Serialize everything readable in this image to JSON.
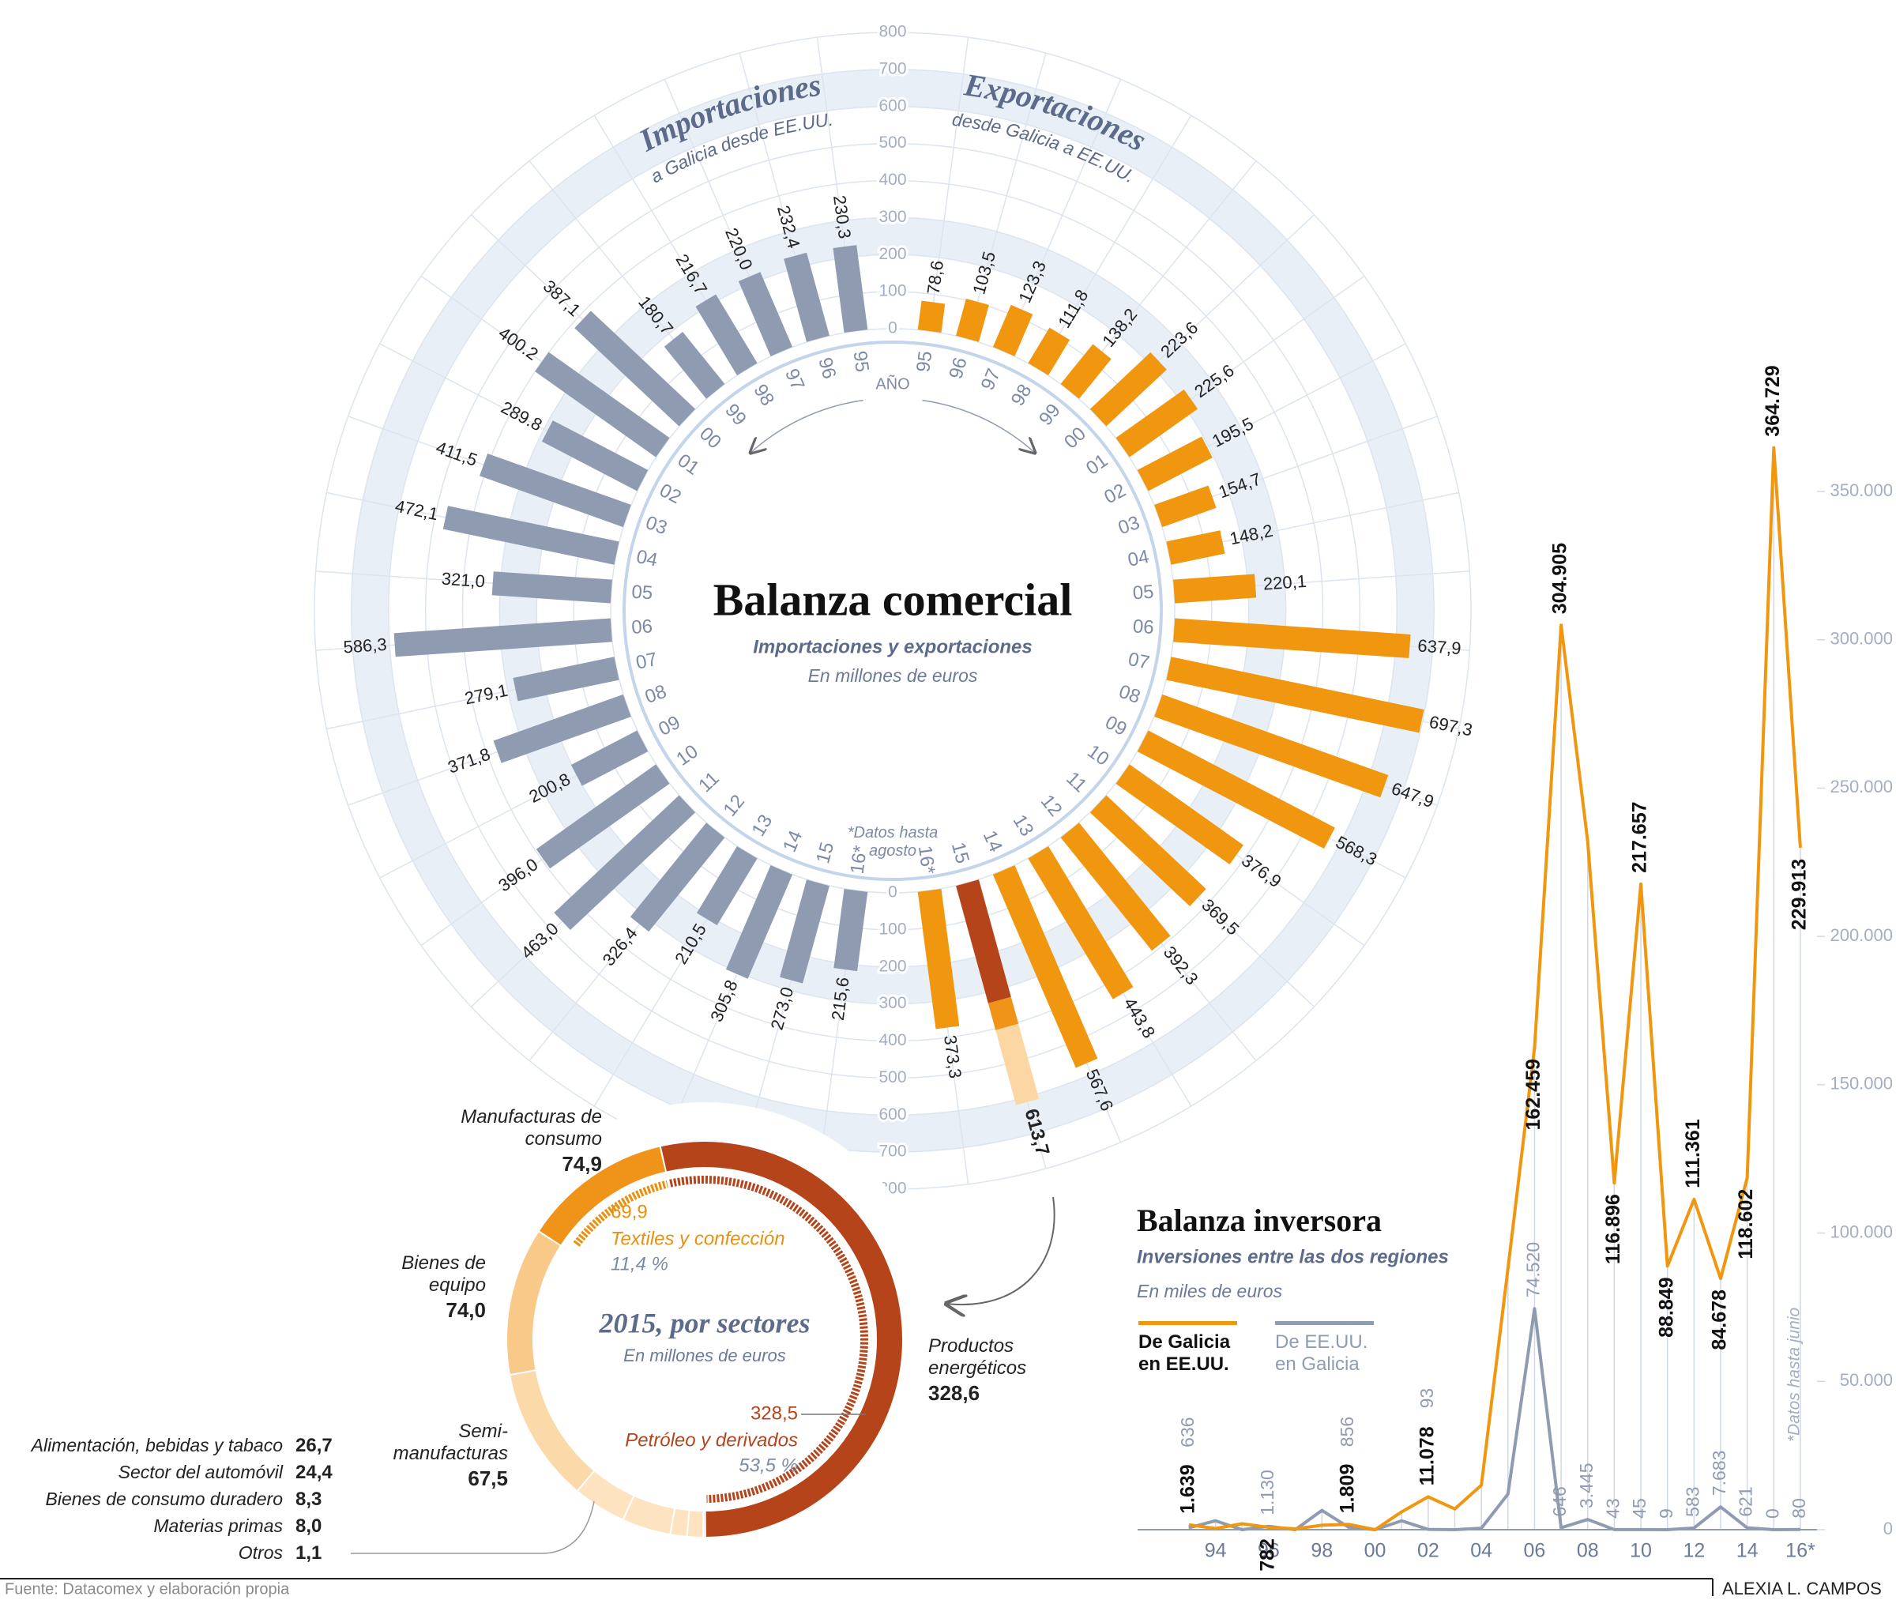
{
  "chart_data": [
    {
      "type": "radial-bar",
      "title": "Balanza comercial",
      "subtitle": "Importaciones y exportaciones",
      "unit_note": "En millones de euros",
      "annotation": "*Datos hasta agosto",
      "axis_label": "AÑO",
      "categories": [
        "95",
        "96",
        "97",
        "98",
        "99",
        "00",
        "01",
        "02",
        "03",
        "04",
        "05",
        "06",
        "07",
        "08",
        "09",
        "10",
        "11",
        "12",
        "13",
        "14",
        "15",
        "16*"
      ],
      "rlim": [
        0,
        800
      ],
      "rticks": [
        0,
        100,
        200,
        300,
        400,
        500,
        600,
        700,
        800
      ],
      "series": [
        {
          "name": "Importaciones",
          "subtitle": "a Galicia desde EE.UU.",
          "color": "#8f9bb1",
          "values": [
            230.3,
            232.4,
            220.0,
            216.7,
            180.7,
            387.1,
            400.2,
            289.8,
            411.5,
            472.1,
            321.0,
            586.3,
            279.1,
            371.8,
            200.8,
            396.0,
            463.0,
            326.4,
            210.5,
            305.8,
            273.0,
            215.6
          ],
          "value_labels": [
            "230,3",
            "232,4",
            "220,0",
            "216,7",
            "180,7",
            "387,1",
            "400.2",
            "289.8",
            "411,5",
            "472,1",
            "321,0",
            "586,3",
            "279,1",
            "371,8",
            "200,8",
            "396,0",
            "463,0",
            "326,4",
            "210,5",
            "305,8",
            "273,0",
            "215,6"
          ]
        },
        {
          "name": "Exportaciones",
          "subtitle": "desde Galicia a EE.UU.",
          "color": "#f0960f",
          "values": [
            78.6,
            103.5,
            123.3,
            111.8,
            138.2,
            223.6,
            225.6,
            195.5,
            154.7,
            148.2,
            220.1,
            637.9,
            697.3,
            647.9,
            568.3,
            376.9,
            369.5,
            392.3,
            443.8,
            567.6,
            613.7,
            373.3
          ],
          "value_labels": [
            "78,6",
            "103,5",
            "123,3",
            "111,8",
            "138,2",
            "223,6",
            "225,6",
            "195,5",
            "154,7",
            "148,2",
            "220,1",
            "637,9",
            "697,3",
            "647,9",
            "568,3",
            "376,9",
            "369,5",
            "392,3",
            "443,8",
            "567,6",
            "613,7",
            "373,3"
          ]
        }
      ]
    },
    {
      "type": "donut",
      "title": "2015, por sectores",
      "subtitle": "En millones de euros",
      "categories": [
        "Productos energéticos",
        "Otros",
        "Materias primas",
        "Bienes de consumo duradero",
        "Sector del automóvil",
        "Alimentación, bebidas y tabaco",
        "Semi-manufacturas",
        "Bienes de equipo",
        "Manufacturas de consumo"
      ],
      "values": [
        328.6,
        1.1,
        8.0,
        8.3,
        24.4,
        26.7,
        67.5,
        74.0,
        74.9
      ],
      "value_labels": [
        "328,6",
        "1,1",
        "8,0",
        "8,3",
        "24,4",
        "26,7",
        "67,5",
        "74,0",
        "74,9"
      ],
      "colors": [
        "#b5441b",
        "#fde3c0",
        "#fde3c0",
        "#fde3c0",
        "#fde3c0",
        "#fde3c0",
        "#fcd9a8",
        "#f9c98a",
        "#ef9418"
      ],
      "highlights": [
        {
          "label": "Textiles y confección",
          "value": 69.9,
          "value_label": "69,9",
          "share": 11.4,
          "share_label": "11,4 %",
          "color": "#e8900f"
        },
        {
          "label": "Petróleo y derivados",
          "value": 328.5,
          "value_label": "328,5",
          "share": 53.5,
          "share_label": "53,5 %",
          "color": "#b5441b"
        }
      ]
    },
    {
      "type": "line",
      "title": "Balanza inversora",
      "subtitle": "Inversiones entre las dos regiones",
      "unit_note": "En miles de euros",
      "annotation": "*Datos hasta junio",
      "categories": [
        null,
        "94",
        null,
        "96",
        null,
        "98",
        null,
        "00",
        null,
        "02",
        null,
        "04",
        null,
        "06",
        null,
        "08",
        null,
        "10",
        null,
        "12",
        null,
        "14",
        null,
        "16*"
      ],
      "ylim": [
        0,
        350000
      ],
      "yticks": [
        0,
        {
          "value": 50000,
          "label": "50.000"
        },
        {
          "value": 100000,
          "label": "100.000"
        },
        {
          "value": 150000,
          "label": "150.000"
        },
        {
          "value": 200000,
          "label": "200.000"
        },
        {
          "value": 250000,
          "label": "250.000"
        },
        {
          "value": 300000,
          "label": "300.000"
        },
        {
          "value": 350000,
          "label": "350.000"
        }
      ],
      "series": [
        {
          "name": "De Galicia en EE.UU.",
          "color": "#f0960f",
          "values": [
            1639,
            400,
            2000,
            782,
            300,
            1500,
            1809,
            0,
            6000,
            11078,
            7000,
            15000,
            88000,
            162459,
            304905,
            232000,
            116896,
            217657,
            88849,
            111361,
            84678,
            118602,
            364729,
            229913
          ],
          "value_labels": [
            "1.639",
            null,
            null,
            "782",
            null,
            null,
            "1.809",
            null,
            null,
            "11.078",
            null,
            null,
            null,
            "162.459",
            "304.905",
            null,
            "116.896",
            "217.657",
            "88.849",
            "111.361",
            "84.678",
            "118.602",
            "364.729",
            "229.913"
          ]
        },
        {
          "name": "De EE.UU. en Galicia",
          "color": "#8f9bb1",
          "values": [
            636,
            3000,
            0,
            1130,
            0,
            6500,
            856,
            0,
            3000,
            93,
            0,
            500,
            12000,
            74520,
            646,
            3445,
            43,
            45,
            9,
            583,
            7683,
            621,
            0,
            80
          ],
          "value_labels": [
            "636",
            null,
            null,
            "1.130",
            null,
            null,
            "856",
            null,
            null,
            "93",
            null,
            null,
            null,
            "74.520",
            "646",
            "3.445",
            "43",
            "45",
            "9",
            "583",
            "7.683",
            "621",
            "0",
            "80"
          ]
        }
      ]
    }
  ],
  "source": "Fuente: Datacomex y elaboración propia",
  "author": "ALEXIA L. CAMPOS"
}
